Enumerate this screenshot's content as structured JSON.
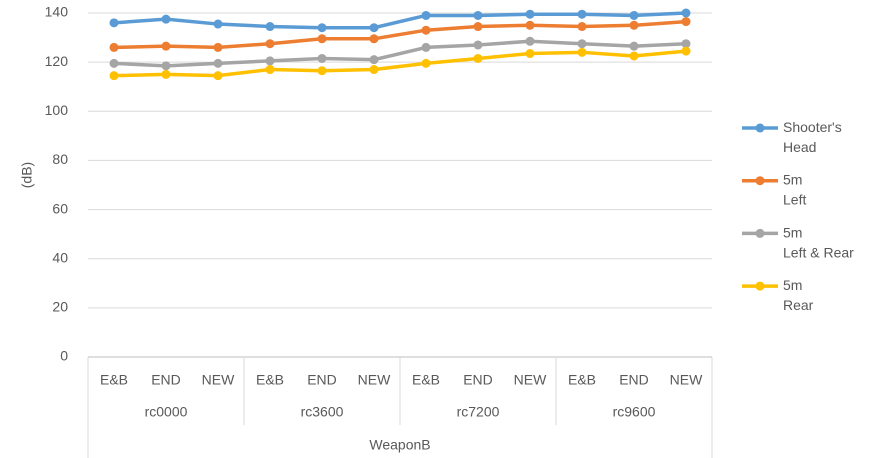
{
  "chart_data": {
    "type": "line",
    "y_label": "(dB)",
    "categories": [
      "E&B",
      "END",
      "NEW",
      "E&B",
      "END",
      "NEW",
      "E&B",
      "END",
      "NEW",
      "E&B",
      "END",
      "NEW"
    ],
    "category_groups": [
      "rc0000",
      "rc3600",
      "rc7200",
      "rc9600"
    ],
    "category_supergroup": "WeaponB",
    "ylim": [
      0,
      140
    ],
    "yticks": [
      0,
      20,
      40,
      60,
      80,
      100,
      120,
      140
    ],
    "grid": true,
    "legend": "right",
    "series": [
      {
        "name": "Shooter's Head",
        "color": "#5b9bd5",
        "values": [
          136,
          137.5,
          135.5,
          134.5,
          134,
          134,
          139,
          139,
          139.5,
          139.5,
          139,
          140
        ]
      },
      {
        "name": "5m Left",
        "color": "#ed7d31",
        "values": [
          126,
          126.5,
          126,
          127.5,
          129.5,
          129.5,
          133,
          134.5,
          135,
          134.5,
          135,
          136.5
        ]
      },
      {
        "name": "5m Left & Rear",
        "color": "#a5a5a5",
        "values": [
          119.5,
          118.5,
          119.5,
          120.5,
          121.5,
          121,
          126,
          127,
          128.5,
          127.5,
          126.5,
          127.5
        ]
      },
      {
        "name": "5m Rear",
        "color": "#ffc000",
        "values": [
          114.5,
          115,
          114.5,
          117,
          116.5,
          117,
          119.5,
          121.5,
          123.5,
          124,
          122.5,
          124.5
        ]
      }
    ]
  }
}
